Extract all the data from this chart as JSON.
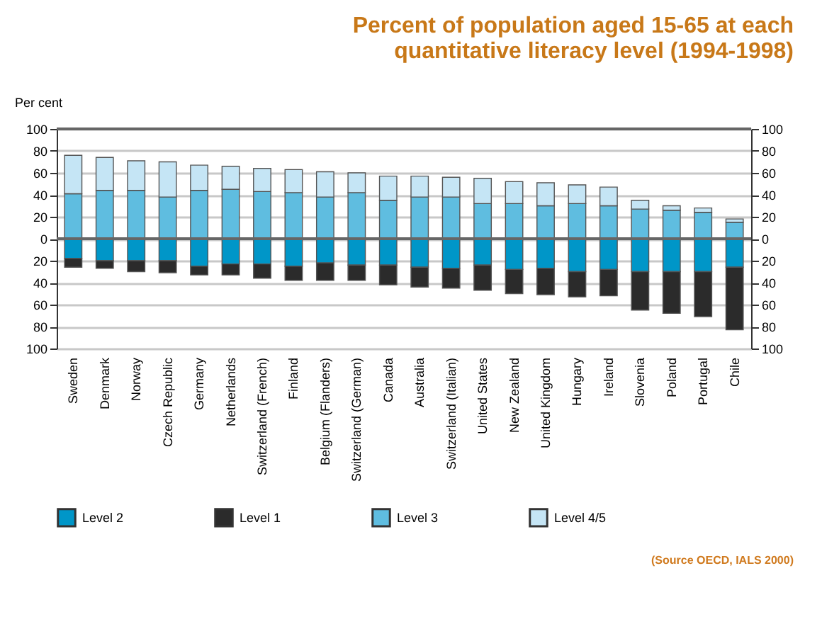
{
  "chart_data": {
    "type": "bar",
    "stacked": true,
    "title": [
      "Percent of population aged 15-65 at each",
      "quantitative literacy level (1994-1998)"
    ],
    "ylabel": "Per cent",
    "categories": [
      "Sweden",
      "Denmark",
      "Norway",
      "Czech Republic",
      "Germany",
      "Netherlands",
      "Switzerland (French)",
      "Finland",
      "Belgium (Flanders)",
      "Switzerland (German)",
      "Canada",
      "Australia",
      "Switzerland (Italian)",
      "United States",
      "New Zealand",
      "United Kingdom",
      "Hungary",
      "Ireland",
      "Slovenia",
      "Poland",
      "Portugal",
      "Chile"
    ],
    "series": [
      {
        "name": "Level 2",
        "color": "#0096c8",
        "values": [
          -18,
          -20,
          -20,
          -20,
          -25,
          -23,
          -23,
          -25,
          -22,
          -24,
          -24,
          -26,
          -27,
          -24,
          -28,
          -27,
          -30,
          -28,
          -30,
          -30,
          -30,
          -26
        ]
      },
      {
        "name": "Level 1",
        "color": "#2b2b2b",
        "values": [
          -8,
          -7,
          -10,
          -11,
          -8,
          -10,
          -13,
          -13,
          -16,
          -14,
          -18,
          -18,
          -18,
          -23,
          -22,
          -24,
          -23,
          -24,
          -35,
          -38,
          -41,
          -57
        ]
      },
      {
        "name": "Level 3",
        "color": "#5fbde0",
        "values": [
          41,
          44,
          44,
          38,
          44,
          45,
          43,
          42,
          38,
          42,
          35,
          38,
          38,
          32,
          32,
          30,
          32,
          30,
          27,
          26,
          24,
          15
        ]
      },
      {
        "name": "Level 4/5",
        "color": "#c5e5f5",
        "values": [
          35,
          30,
          27,
          32,
          23,
          21,
          21,
          21,
          23,
          18,
          22,
          19,
          18,
          23,
          20,
          21,
          17,
          17,
          8,
          4,
          4,
          3
        ]
      }
    ],
    "ylim": [
      -100,
      100
    ],
    "yticks": [
      {
        "value": -100,
        "label": "100"
      },
      {
        "value": -80,
        "label": "80"
      },
      {
        "value": -60,
        "label": "60"
      },
      {
        "value": -40,
        "label": "40"
      },
      {
        "value": -20,
        "label": "20"
      },
      0,
      20,
      40,
      60,
      80,
      100
    ],
    "y2lim": [
      -100,
      100
    ],
    "y2ticks": [
      {
        "value": -100,
        "label": "100"
      },
      {
        "value": -80,
        "label": "80"
      },
      {
        "value": -60,
        "label": "60"
      },
      {
        "value": -40,
        "label": "40"
      },
      {
        "value": -20,
        "label": "20"
      },
      0,
      20,
      40,
      60,
      80,
      100
    ],
    "grid": "y",
    "legend": "bottom",
    "annotations": [
      "(Source OECD, IALS 2000)"
    ]
  }
}
